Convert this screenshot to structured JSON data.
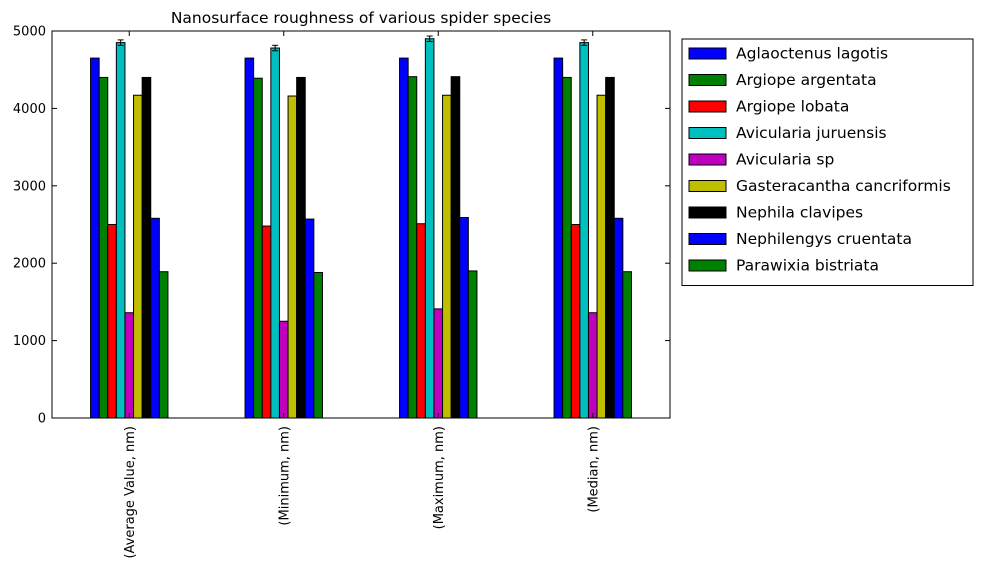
{
  "chart_data": {
    "type": "bar",
    "title": "Nanosurface roughness of various spider species",
    "xlabel": "",
    "ylabel": "",
    "ylim": [
      0,
      5000
    ],
    "yticks": [
      "0",
      "1000",
      "2000",
      "3000",
      "4000",
      "5000"
    ],
    "categories": [
      "(Average Value, nm)",
      "(Minimum, nm)",
      "(Maximum, nm)",
      "(Median, nm)"
    ],
    "legend_position": "outside-right",
    "series": [
      {
        "name": "Aglaoctenus lagotis",
        "color": "#0000ff",
        "values": [
          4650,
          4650,
          4650,
          4650
        ]
      },
      {
        "name": "Argiope argentata",
        "color": "#008000",
        "values": [
          4400,
          4390,
          4410,
          4400
        ]
      },
      {
        "name": "Argiope lobata",
        "color": "#ff0000",
        "values": [
          2500,
          2480,
          2510,
          2500
        ]
      },
      {
        "name": "Avicularia juruensis",
        "color": "#00bfbf",
        "values": [
          4850,
          4780,
          4900,
          4850
        ],
        "errors": [
          35,
          35,
          35,
          35
        ]
      },
      {
        "name": "Avicularia sp",
        "color": "#bf00bf",
        "values": [
          1360,
          1250,
          1410,
          1360
        ]
      },
      {
        "name": "Gasteracantha cancriformis",
        "color": "#bfbf00",
        "values": [
          4170,
          4160,
          4170,
          4170
        ]
      },
      {
        "name": "Nephila clavipes",
        "color": "#000000",
        "values": [
          4400,
          4400,
          4410,
          4400
        ]
      },
      {
        "name": "Nephilengys cruentata",
        "color": "#0000ff",
        "values": [
          2580,
          2570,
          2590,
          2580
        ]
      },
      {
        "name": "Parawixia bistriata",
        "color": "#008000",
        "values": [
          1890,
          1880,
          1900,
          1890
        ]
      }
    ]
  }
}
